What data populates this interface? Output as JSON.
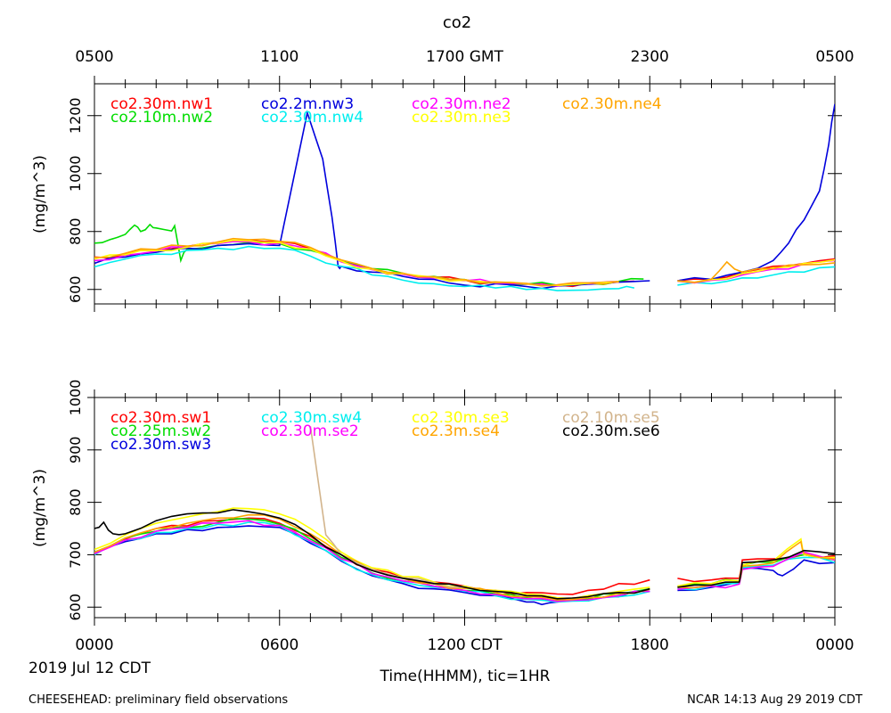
{
  "title": "co2",
  "xlabel": "Time(HHMM), tic=1HR",
  "date_label": "2019 Jul 12 CDT",
  "footer_left": "CHEESEHEAD: preliminary field observations",
  "footer_right": "NCAR 14:13 Aug 29 2019 CDT",
  "top_ticks": [
    {
      "hour": 0,
      "label": "0500"
    },
    {
      "hour": 6,
      "label": "1100"
    },
    {
      "hour": 12,
      "label": "1700 GMT"
    },
    {
      "hour": 18,
      "label": "2300"
    },
    {
      "hour": 24,
      "label": "0500"
    }
  ],
  "bottom_ticks": [
    {
      "hour": 0,
      "label": "0000"
    },
    {
      "hour": 6,
      "label": "0600"
    },
    {
      "hour": 12,
      "label": "1200 CDT"
    },
    {
      "hour": 18,
      "label": "1800"
    },
    {
      "hour": 24,
      "label": "0000"
    }
  ],
  "chart_data": [
    {
      "type": "line",
      "title": "co2",
      "ylabel": "(mg/m^3)",
      "xlim": [
        0,
        24
      ],
      "ylim": [
        550,
        1310
      ],
      "yticks": [
        600,
        800,
        1000,
        1200
      ],
      "series": [
        {
          "name": "co2.30m.nw1",
          "color": "#ff0000",
          "x": [
            0,
            1,
            2,
            3,
            4,
            5,
            6,
            7,
            8,
            9,
            10,
            11,
            12,
            13,
            14,
            15,
            16,
            17.5,
            18.9,
            20,
            21,
            22,
            23,
            24
          ],
          "y": [
            712,
            722,
            735,
            748,
            762,
            770,
            765,
            740,
            700,
            670,
            655,
            642,
            632,
            625,
            620,
            615,
            622,
            628,
            630,
            635,
            660,
            680,
            690,
            705
          ]
        },
        {
          "name": "co2.10m.nw2",
          "color": "#00dd00",
          "x": [
            0,
            0.5,
            1,
            1.3,
            1.5,
            1.8,
            2,
            2.5,
            2.6,
            2.8,
            3,
            4,
            5,
            6,
            7,
            8,
            9,
            10,
            11,
            12,
            13,
            14,
            15,
            16,
            17,
            17.8
          ],
          "y": [
            760,
            772,
            790,
            822,
            800,
            824,
            812,
            802,
            820,
            700,
            738,
            752,
            762,
            758,
            735,
            700,
            672,
            656,
            645,
            634,
            625,
            618,
            614,
            622,
            628,
            636
          ]
        },
        {
          "name": "co2.2m.nw3",
          "color": "#0000dd",
          "x": [
            0,
            1,
            2,
            3,
            4,
            5,
            6,
            6.9,
            7.4,
            7.7,
            7.9,
            8,
            9,
            10,
            11,
            12,
            13,
            14,
            15,
            16,
            17,
            18,
            18.9,
            20,
            21,
            22,
            22.5,
            23,
            23.5,
            23.8,
            24
          ],
          "y": [
            690,
            712,
            728,
            742,
            752,
            758,
            752,
            1210,
            1050,
            850,
            680,
            680,
            660,
            645,
            635,
            615,
            620,
            610,
            612,
            618,
            625,
            630,
            630,
            635,
            660,
            700,
            760,
            840,
            940,
            1100,
            1240
          ]
        },
        {
          "name": "co2.30m.nw4",
          "color": "#00eeee",
          "x": [
            0,
            1,
            2,
            3,
            4,
            5,
            6,
            7,
            8,
            9,
            10,
            11,
            12,
            13,
            14,
            15,
            16,
            17,
            17.5,
            18.9,
            20,
            21,
            22,
            23,
            24
          ],
          "y": [
            678,
            705,
            722,
            735,
            742,
            748,
            742,
            715,
            680,
            650,
            632,
            620,
            610,
            605,
            600,
            596,
            598,
            603,
            605,
            615,
            620,
            640,
            650,
            660,
            678
          ]
        },
        {
          "name": "co2.30m.ne2",
          "color": "#ff00ff",
          "x": [
            0,
            1,
            2,
            3,
            4,
            5,
            6,
            7,
            8,
            9,
            10,
            11,
            12,
            13,
            14,
            15,
            16,
            17,
            18.9,
            20,
            21,
            22,
            23,
            24
          ],
          "y": [
            700,
            718,
            732,
            745,
            758,
            765,
            760,
            738,
            695,
            668,
            652,
            640,
            630,
            622,
            618,
            612,
            620,
            625,
            628,
            632,
            650,
            670,
            688,
            700
          ]
        },
        {
          "name": "co2.30m.ne3",
          "color": "#ffff00",
          "x": [
            0,
            1,
            2,
            3,
            4,
            5,
            6,
            7,
            8,
            9,
            10,
            11,
            12,
            13,
            14,
            15,
            16,
            17,
            18.9,
            20,
            21,
            22,
            23,
            24
          ],
          "y": [
            705,
            720,
            734,
            746,
            760,
            768,
            762,
            740,
            698,
            670,
            654,
            642,
            632,
            624,
            619,
            614,
            621,
            626,
            629,
            634,
            655,
            675,
            690,
            702
          ]
        },
        {
          "name": "co2.30m.ne4",
          "color": "#ffa500",
          "x": [
            0,
            1,
            2,
            3,
            4,
            5,
            6,
            7,
            8,
            9,
            10,
            11,
            12,
            13,
            14,
            15,
            16,
            17,
            18.9,
            20,
            20.5,
            21,
            22,
            23,
            24
          ],
          "y": [
            710,
            725,
            738,
            750,
            764,
            772,
            766,
            745,
            702,
            672,
            656,
            644,
            634,
            626,
            621,
            616,
            623,
            628,
            630,
            636,
            695,
            660,
            672,
            685,
            692
          ]
        }
      ]
    },
    {
      "type": "line",
      "ylabel": "(mg/m^3)",
      "xlim": [
        0,
        24
      ],
      "ylim": [
        580,
        1000
      ],
      "yticks": [
        600,
        700,
        800,
        900,
        1000
      ],
      "series": [
        {
          "name": "co2.30m.sw1",
          "color": "#ff0000",
          "x": [
            0,
            1,
            2,
            3,
            4,
            5,
            6,
            7,
            8,
            9,
            10,
            11,
            12,
            13,
            14,
            15,
            16,
            17,
            18,
            18.9,
            20,
            20.9,
            21,
            22,
            23,
            24
          ],
          "y": [
            702,
            730,
            750,
            755,
            765,
            770,
            760,
            735,
            700,
            672,
            658,
            648,
            640,
            632,
            628,
            625,
            632,
            645,
            652,
            655,
            652,
            655,
            690,
            692,
            700,
            698
          ]
        },
        {
          "name": "co2.25m.sw2",
          "color": "#00dd00",
          "x": [
            0,
            1,
            2,
            3,
            4,
            5,
            6,
            7,
            8,
            9,
            10,
            11,
            12,
            13,
            14,
            15,
            16,
            17,
            18,
            18.9,
            20,
            20.9,
            21,
            22,
            23,
            24
          ],
          "y": [
            705,
            732,
            745,
            752,
            762,
            768,
            758,
            730,
            695,
            665,
            650,
            640,
            632,
            625,
            618,
            612,
            615,
            625,
            635,
            640,
            645,
            650,
            680,
            685,
            700,
            690
          ]
        },
        {
          "name": "co2.30m.sw3",
          "color": "#0000dd",
          "x": [
            0,
            1,
            2,
            3,
            4,
            5,
            6,
            7,
            8,
            9,
            10,
            11,
            12,
            13,
            14,
            14.5,
            15,
            16,
            17,
            18,
            18.9,
            20,
            20.9,
            21,
            22,
            22.3,
            23,
            24
          ],
          "y": [
            705,
            725,
            740,
            748,
            752,
            755,
            752,
            722,
            688,
            660,
            645,
            635,
            628,
            622,
            610,
            605,
            610,
            612,
            620,
            630,
            632,
            638,
            648,
            675,
            670,
            660,
            690,
            685
          ]
        },
        {
          "name": "co2.30m.sw4",
          "color": "#00eeee",
          "x": [
            0,
            1,
            2,
            3,
            4,
            5,
            6,
            7,
            8,
            9,
            10,
            11,
            12,
            13,
            14,
            15,
            16,
            17,
            18,
            18.9,
            20,
            20.9,
            21,
            22,
            23,
            24
          ],
          "y": [
            700,
            728,
            742,
            750,
            758,
            762,
            755,
            725,
            690,
            662,
            648,
            638,
            630,
            622,
            615,
            610,
            612,
            620,
            630,
            635,
            640,
            645,
            675,
            680,
            695,
            685
          ]
        },
        {
          "name": "co2.30m.se2",
          "color": "#ff00ff",
          "x": [
            0,
            1,
            2,
            3,
            4,
            5,
            6,
            7,
            8,
            9,
            10,
            11,
            12,
            13,
            14,
            15,
            16,
            17,
            18,
            18.9,
            20,
            20.9,
            21,
            22,
            23,
            24
          ],
          "y": [
            702,
            728,
            745,
            752,
            760,
            765,
            756,
            726,
            692,
            664,
            650,
            640,
            632,
            624,
            616,
            611,
            614,
            622,
            630,
            634,
            640,
            644,
            672,
            678,
            705,
            690
          ]
        },
        {
          "name": "co2.30m.se3",
          "color": "#ffff00",
          "x": [
            0,
            1,
            2,
            3,
            4,
            5,
            6,
            7,
            8,
            9,
            10,
            11,
            12,
            13,
            14,
            15,
            16,
            17,
            18,
            18.9,
            20,
            20.9,
            21,
            22,
            22.9,
            23,
            24
          ],
          "y": [
            710,
            738,
            760,
            772,
            782,
            788,
            778,
            750,
            705,
            675,
            658,
            648,
            640,
            632,
            625,
            618,
            622,
            630,
            638,
            640,
            645,
            650,
            680,
            688,
            730,
            700,
            695
          ]
        },
        {
          "name": "co2.3m.se4",
          "color": "#ffa500",
          "x": [
            0,
            1,
            2,
            3,
            4,
            5,
            6,
            7,
            8,
            9,
            10,
            11,
            12,
            13,
            14,
            15,
            16,
            17,
            18,
            18.9,
            20,
            20.9,
            21,
            22,
            22.9,
            23,
            24
          ],
          "y": [
            705,
            732,
            750,
            760,
            770,
            776,
            768,
            740,
            700,
            670,
            655,
            645,
            636,
            628,
            620,
            614,
            618,
            626,
            634,
            638,
            642,
            648,
            678,
            684,
            725,
            702,
            692
          ]
        },
        {
          "name": "co2.10m.se5",
          "color": "#d2b48c",
          "x": [
            7.0,
            7.5,
            8,
            9,
            10,
            11,
            12
          ],
          "y": [
            945,
            738,
            700,
            672,
            656,
            646,
            638
          ]
        },
        {
          "name": "co2.30m.se6",
          "color": "#000000",
          "x": [
            0,
            0.3,
            0.6,
            1,
            2,
            3,
            4,
            5,
            6,
            7,
            8,
            9,
            10,
            11,
            12,
            13,
            14,
            15,
            16,
            17,
            18,
            18.9,
            20,
            20.9,
            21,
            22,
            23,
            24
          ],
          "y": [
            750,
            762,
            740,
            740,
            765,
            778,
            780,
            782,
            770,
            738,
            700,
            670,
            655,
            645,
            638,
            630,
            622,
            616,
            620,
            628,
            635,
            638,
            642,
            648,
            685,
            690,
            708,
            702
          ]
        }
      ]
    }
  ]
}
